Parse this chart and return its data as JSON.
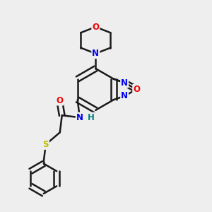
{
  "bg_color": "#eeeeee",
  "bond_color": "#1a1a1a",
  "bond_width": 1.8,
  "atom_colors": {
    "N": "#0000ee",
    "O": "#ee0000",
    "S": "#bbbb00",
    "H": "#008080",
    "C": "#1a1a1a"
  },
  "font_size": 8.5,
  "fig_size": [
    3.0,
    3.0
  ],
  "dpi": 100
}
